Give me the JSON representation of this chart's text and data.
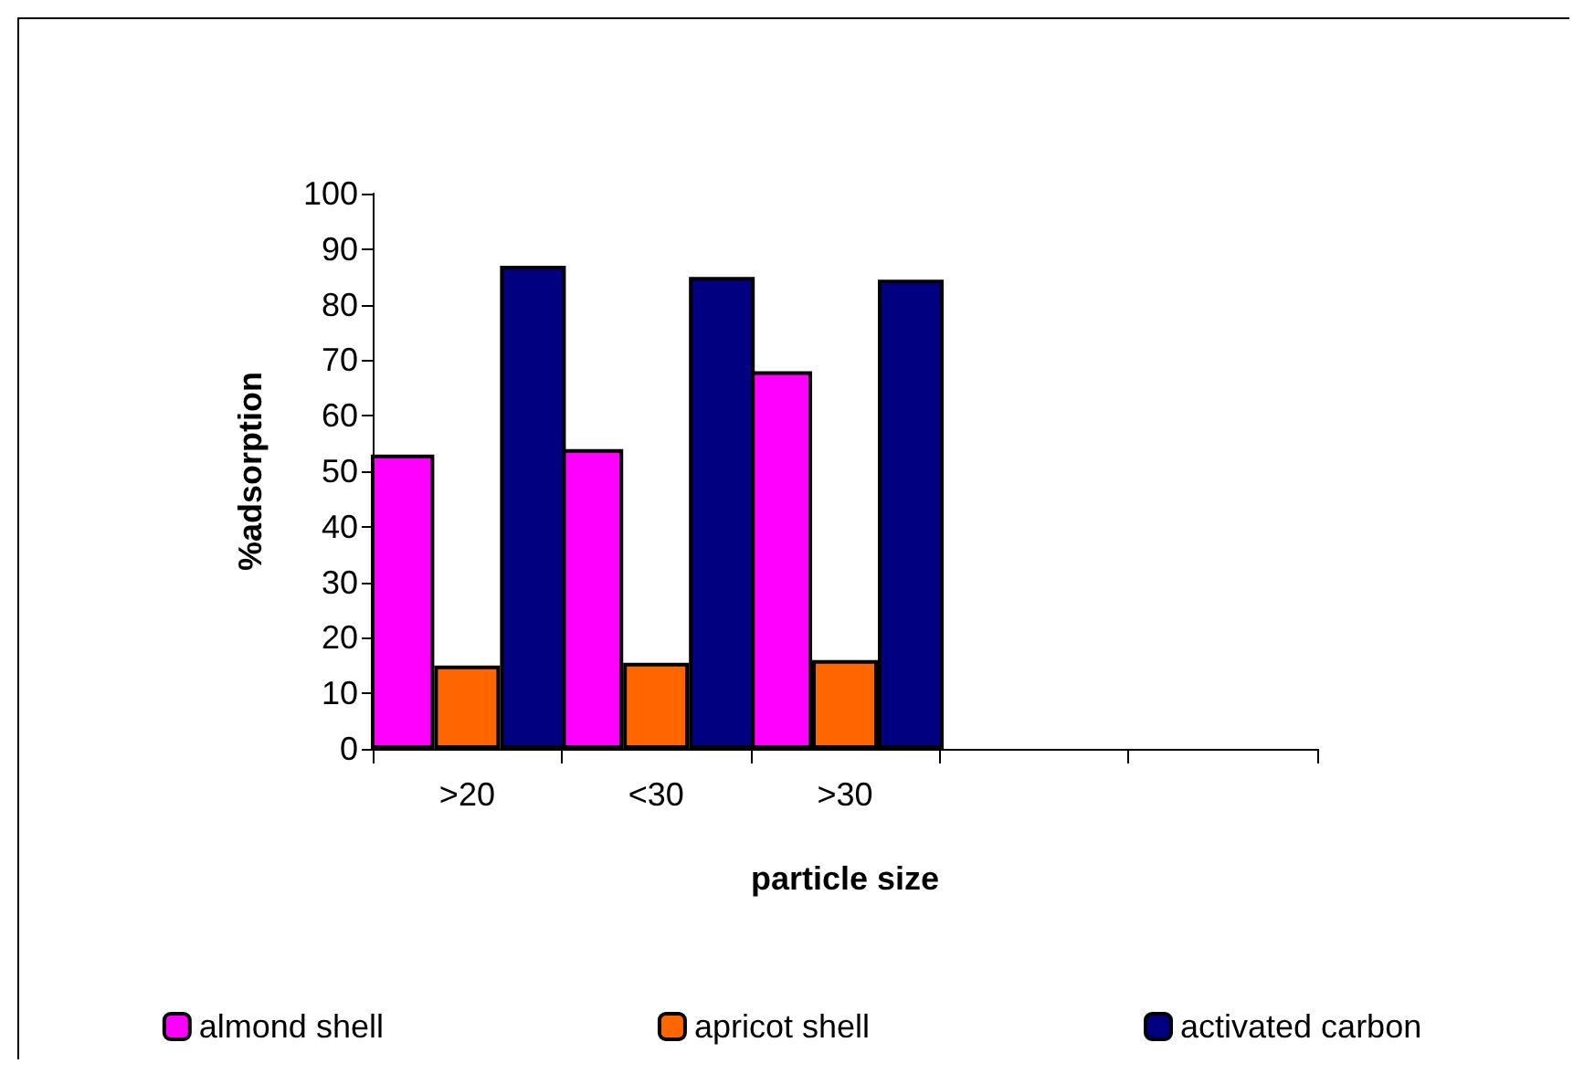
{
  "chart_data": {
    "type": "bar",
    "xlabel": "particle size",
    "ylabel": "%adsorption",
    "categories": [
      ">20",
      "<30",
      ">30",
      null,
      null
    ],
    "series": [
      {
        "name": "almond shell",
        "color": "#ff00ff",
        "values": [
          53,
          54,
          68,
          null,
          null
        ]
      },
      {
        "name": "apricot shell",
        "color": "#ff6600",
        "values": [
          15,
          15.5,
          16,
          null,
          null
        ]
      },
      {
        "name": "activated carbon",
        "color": "#000080",
        "values": [
          87,
          85,
          84.5,
          null,
          null
        ]
      }
    ],
    "ylim": [
      0,
      100
    ],
    "yticks": [
      0,
      10,
      20,
      30,
      40,
      50,
      60,
      70,
      80,
      90,
      100
    ],
    "grid": false,
    "legend": "bottom"
  }
}
